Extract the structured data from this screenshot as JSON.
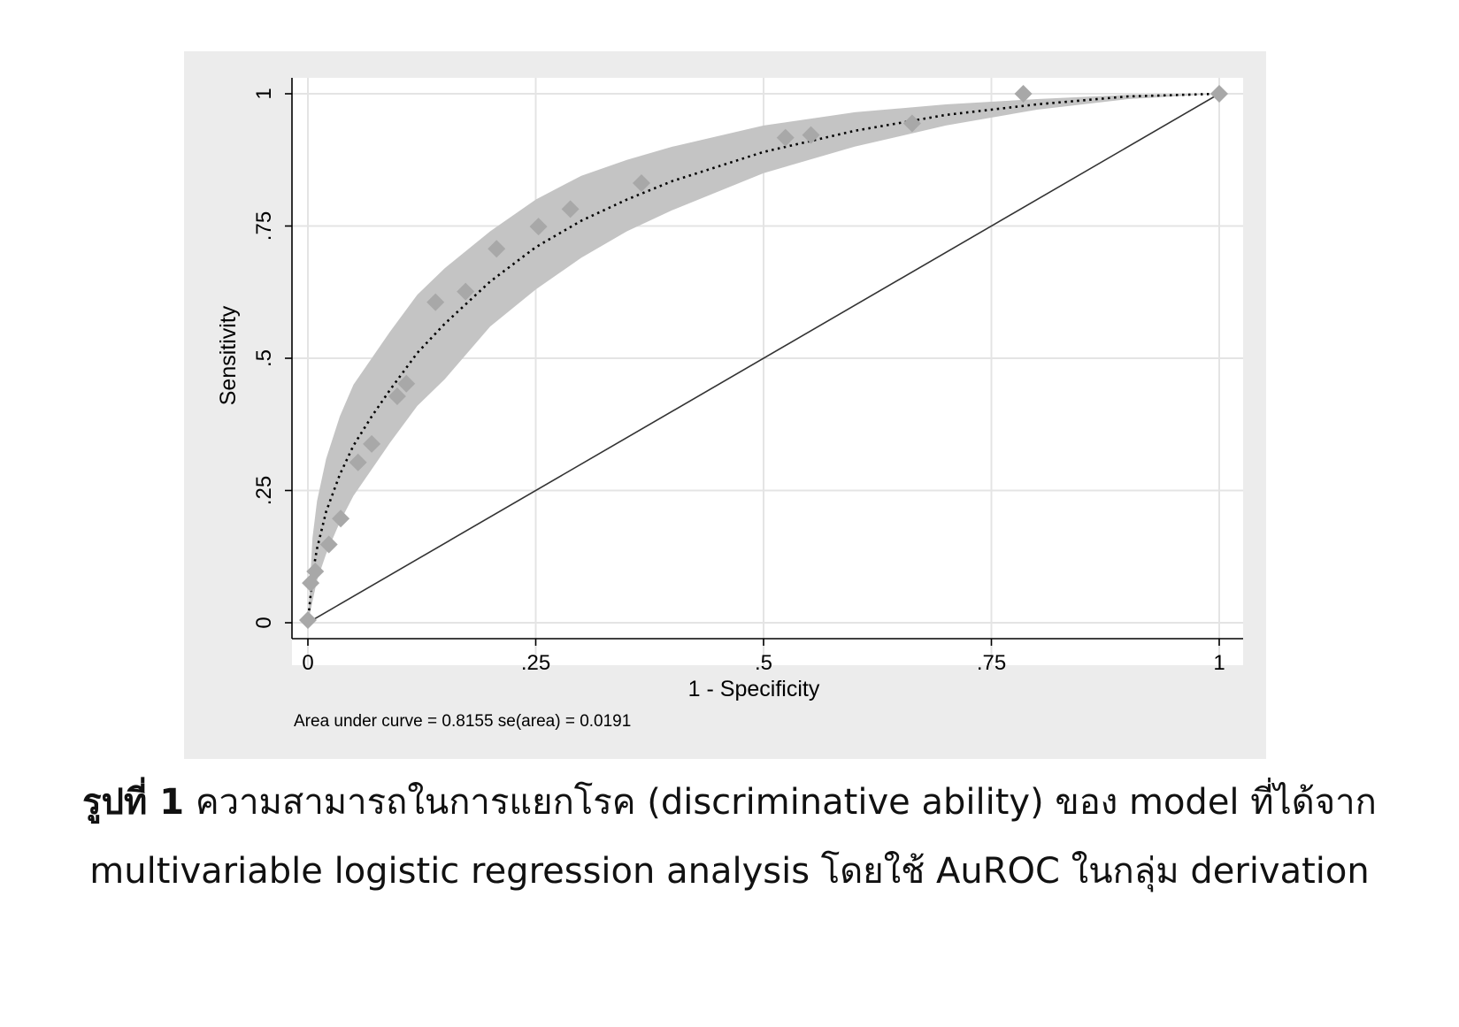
{
  "chart_data": {
    "type": "line",
    "xlabel": "1 - Specificity",
    "ylabel": "Sensitivity",
    "xlim": [
      0,
      1
    ],
    "ylim": [
      0,
      1
    ],
    "x_ticks": [
      0,
      0.25,
      0.5,
      0.75,
      1
    ],
    "x_tick_labels": [
      "0",
      ".25",
      ".5",
      ".75",
      "1"
    ],
    "y_ticks": [
      0,
      0.25,
      0.5,
      0.75,
      1
    ],
    "y_tick_labels": [
      "0",
      ".25",
      ".5",
      ".75",
      "1"
    ],
    "grid": true,
    "note": "Area under curve = 0.8155  se(area) = 0.0191",
    "auc": 0.8155,
    "auc_se": 0.0191,
    "colors": {
      "panel_background": "#ececec",
      "plot_background": "#ffffff",
      "grid": "#e4e4e4",
      "confidence_band": "#c4c4c4",
      "markers": "#a8a8a8",
      "fitted_curve": "#000000",
      "reference_line": "#333333"
    },
    "series": [
      {
        "kind": "empirical_points",
        "marker": "diamond",
        "x": [
          0,
          0.003,
          0.008,
          0.023,
          0.036,
          0.055,
          0.07,
          0.098,
          0.108,
          0.14,
          0.173,
          0.207,
          0.253,
          0.288,
          0.366,
          0.524,
          0.552,
          0.663,
          0.785,
          1
        ],
        "y": [
          0.005,
          0.075,
          0.097,
          0.148,
          0.197,
          0.303,
          0.338,
          0.428,
          0.452,
          0.606,
          0.626,
          0.707,
          0.749,
          0.782,
          0.831,
          0.917,
          0.922,
          0.944,
          1,
          1
        ]
      },
      {
        "kind": "fitted_roc_curve",
        "style": "dotted",
        "x": [
          0,
          0.005,
          0.01,
          0.02,
          0.035,
          0.05,
          0.07,
          0.09,
          0.12,
          0.15,
          0.2,
          0.25,
          0.3,
          0.35,
          0.4,
          0.5,
          0.6,
          0.7,
          0.8,
          0.9,
          1
        ],
        "y": [
          0,
          0.09,
          0.14,
          0.21,
          0.28,
          0.335,
          0.39,
          0.44,
          0.51,
          0.565,
          0.645,
          0.71,
          0.76,
          0.8,
          0.835,
          0.89,
          0.93,
          0.96,
          0.98,
          0.995,
          1
        ]
      },
      {
        "kind": "confidence_band",
        "x": [
          0,
          0.005,
          0.01,
          0.02,
          0.035,
          0.05,
          0.07,
          0.09,
          0.12,
          0.15,
          0.2,
          0.25,
          0.3,
          0.35,
          0.4,
          0.5,
          0.6,
          0.7,
          0.8,
          0.9,
          1
        ],
        "lower": [
          0,
          0.04,
          0.08,
          0.13,
          0.19,
          0.24,
          0.29,
          0.34,
          0.41,
          0.46,
          0.56,
          0.63,
          0.69,
          0.74,
          0.78,
          0.85,
          0.9,
          0.94,
          0.97,
          0.99,
          1
        ],
        "upper": [
          0,
          0.16,
          0.23,
          0.31,
          0.39,
          0.45,
          0.5,
          0.55,
          0.62,
          0.67,
          0.74,
          0.8,
          0.845,
          0.875,
          0.9,
          0.94,
          0.965,
          0.98,
          0.99,
          0.998,
          1
        ]
      },
      {
        "kind": "reference_line",
        "x": [
          0,
          1
        ],
        "y": [
          0,
          1
        ]
      }
    ]
  },
  "caption": {
    "label": "รูปที่ 1",
    "line1": "ความสามารถในการแยกโรค (discriminative ability) ของ model ที่ได้จาก",
    "line2": "multivariable logistic regression analysis โดยใช้ AuROC ในกลุ่ม derivation"
  }
}
